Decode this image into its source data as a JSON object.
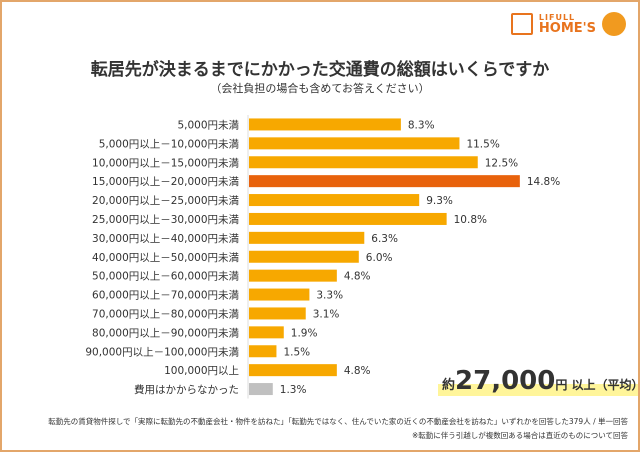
{
  "logo": {
    "line1": "LIFULL",
    "line2": "HOME'S"
  },
  "title": "転居先が決まるまでにかかった交通費の総額はいくらですか",
  "subtitle": "（会社負担の場合も含めてお答えください）",
  "average": {
    "prefix": "約",
    "value": "27,000",
    "suffix": "円 以上（平均）"
  },
  "notes": [
    "転勤先の賃貸物件探しで「実際に転勤先の不動産会社・物件を訪ねた」「転勤先ではなく、住んでいた家の近くの不動産会社を訪ねた」いずれかを回答した379人 / 単一回答",
    "※転勤に伴う引越しが複数回ある場合は直近のものについて回答"
  ],
  "colors": {
    "bar": "#f7a800",
    "highlight": "#e8620c",
    "none": "#c0c0c0"
  },
  "chart_data": {
    "type": "bar",
    "orientation": "horizontal",
    "unit": "%",
    "categories": [
      "5,000円未満",
      "5,000円以上－10,000円未満",
      "10,000円以上－15,000円未満",
      "15,000円以上－20,000円未満",
      "20,000円以上－25,000円未満",
      "25,000円以上－30,000円未満",
      "30,000円以上－40,000円未満",
      "40,000円以上－50,000円未満",
      "50,000円以上－60,000円未満",
      "60,000円以上－70,000円未満",
      "70,000円以上－80,000円未満",
      "80,000円以上－90,000円未満",
      "90,000円以上－100,000円未満",
      "100,000円以上",
      "費用はかからなかった"
    ],
    "values": [
      8.3,
      11.5,
      12.5,
      14.8,
      9.3,
      10.8,
      6.3,
      6.0,
      4.8,
      3.3,
      3.1,
      1.9,
      1.5,
      4.8,
      1.3
    ],
    "labels": [
      "8.3%",
      "11.5%",
      "12.5%",
      "14.8%",
      "9.3%",
      "10.8%",
      "6.3%",
      "6.0%",
      "4.8%",
      "3.3%",
      "3.1%",
      "1.9%",
      "1.5%",
      "4.8%",
      "1.3%"
    ],
    "highlight_index": 3,
    "grey_index": 14
  }
}
